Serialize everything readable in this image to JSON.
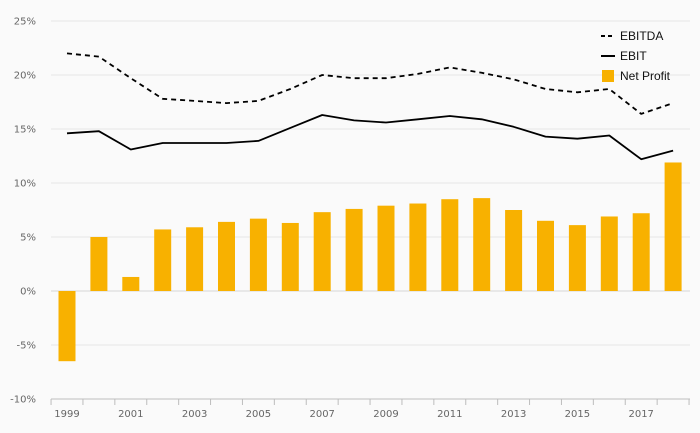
{
  "chart_data": {
    "type": "bar+line",
    "title": "",
    "xlabel": "",
    "ylabel": "",
    "ylim": [
      -10,
      25
    ],
    "yticks": [
      -10,
      -5,
      0,
      5,
      10,
      15,
      20,
      25
    ],
    "ytick_labels": [
      "-10%",
      "-5%",
      "0%",
      "5%",
      "10%",
      "15%",
      "20%",
      "25%"
    ],
    "x": [
      1999,
      2000,
      2001,
      2002,
      2003,
      2004,
      2005,
      2006,
      2007,
      2008,
      2009,
      2010,
      2011,
      2012,
      2013,
      2014,
      2015,
      2016,
      2017,
      2018
    ],
    "xtick_labels": [
      "1999",
      "2001",
      "2003",
      "2005",
      "2007",
      "2009",
      "2011",
      "2013",
      "2015",
      "2017"
    ],
    "grid": "horizontal",
    "legend_position": "top-right",
    "series": [
      {
        "name": "EBITDA",
        "type": "line",
        "style": "dashed",
        "color": "#000000",
        "values": [
          22.0,
          21.7,
          19.7,
          17.8,
          17.6,
          17.4,
          17.6,
          18.7,
          20.0,
          19.7,
          19.7,
          20.1,
          20.7,
          20.2,
          19.6,
          18.7,
          18.4,
          18.7,
          16.4,
          17.4
        ]
      },
      {
        "name": "EBIT",
        "type": "line",
        "style": "solid",
        "color": "#000000",
        "values": [
          14.6,
          14.8,
          13.1,
          13.7,
          13.7,
          13.7,
          13.9,
          15.1,
          16.3,
          15.8,
          15.6,
          15.9,
          16.2,
          15.9,
          15.2,
          14.3,
          14.1,
          14.4,
          12.2,
          13.0
        ]
      },
      {
        "name": "Net Profit",
        "type": "bar",
        "color": "#f8b100",
        "values": [
          -6.5,
          5.0,
          1.3,
          5.7,
          5.9,
          6.4,
          6.7,
          6.3,
          7.3,
          7.6,
          7.9,
          8.1,
          8.5,
          8.6,
          7.5,
          6.5,
          6.1,
          6.9,
          7.2,
          11.9
        ]
      }
    ]
  }
}
